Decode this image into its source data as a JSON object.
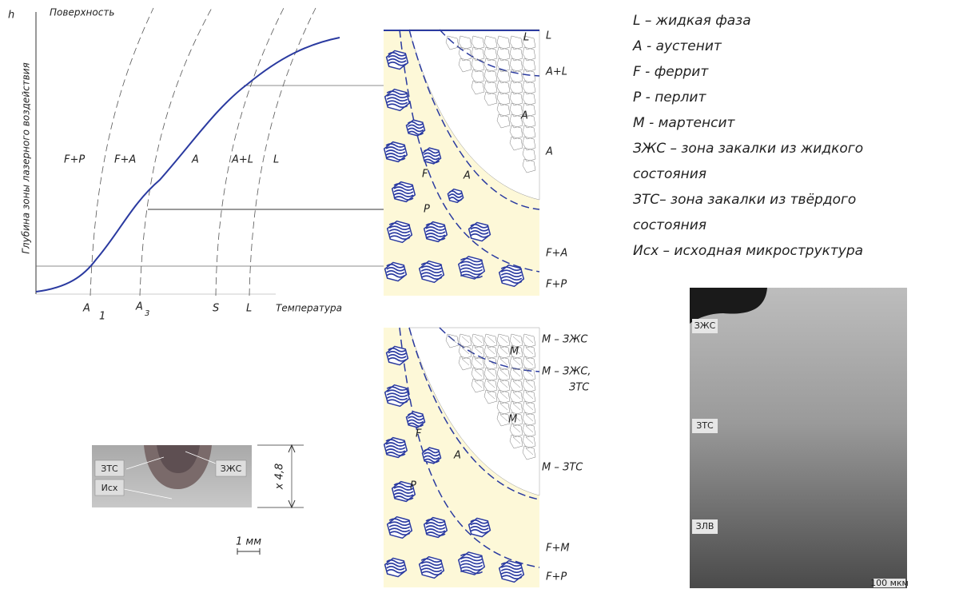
{
  "graph": {
    "h": "h",
    "surface": "Поверхность",
    "y_label": "Глубина зоны лазерного воздействия",
    "x_label": "Температура",
    "points": [
      {
        "main": "A",
        "sub": "1"
      },
      {
        "main": "A",
        "sub": "3"
      },
      {
        "main": "S"
      },
      {
        "main": "L"
      }
    ],
    "regions": [
      "F+P",
      "F+A",
      "A",
      "A+L",
      "L"
    ]
  },
  "heating": {
    "levels": [
      "L",
      "A+L",
      "A",
      "F+A",
      "F+P"
    ],
    "grains": [
      "L",
      "A",
      "F",
      "A",
      "P"
    ]
  },
  "cooling": {
    "levels": [
      "M – ЗЖС",
      "M – ЗЖС,",
      "ЗТС",
      "M – ЗТС",
      "F+M",
      "F+P"
    ],
    "grains": [
      "M",
      "M",
      "F",
      "A",
      "P"
    ]
  },
  "macro": {
    "labels": [
      "ЗТС",
      "ЗЖС",
      "Исх"
    ],
    "magnification": "x 4,8",
    "scale": "1 мм"
  },
  "legend": [
    "L – жидкая фаза",
    "A - аустенит",
    "F - феррит",
    "P - перлит",
    "M - мартенсит",
    "ЗЖС – зона закалки из жидкого",
    "состояния",
    "ЗТС– зона закалки из твёрдого",
    "состояния",
    "Исх – исходная микроструктура"
  ],
  "micrograph": {
    "labels": [
      "ЗЖС",
      "ЗТС",
      "ЗЛВ"
    ],
    "scale": "100 мкм"
  }
}
